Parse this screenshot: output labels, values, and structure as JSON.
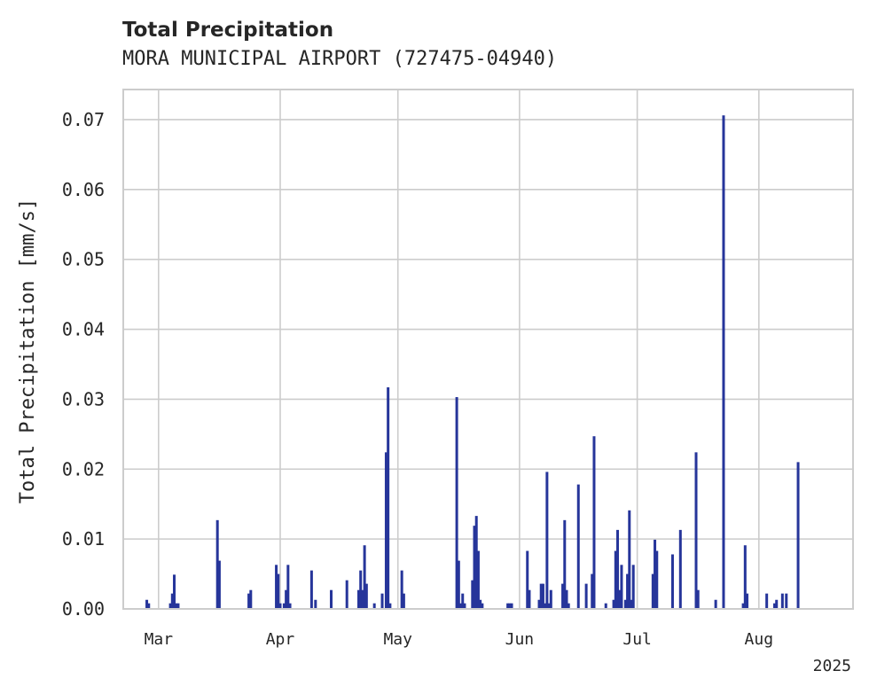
{
  "chart_data": {
    "type": "bar",
    "title": "Total Precipitation",
    "subtitle": "MORA MUNICIPAL AIRPORT (727475-04940)",
    "xlabel": "",
    "ylabel": "Total Precipitation [mm/s]",
    "ylim": [
      0,
      0.0743
    ],
    "yticks": [
      "0.00",
      "0.01",
      "0.02",
      "0.03",
      "0.04",
      "0.05",
      "0.06",
      "0.07"
    ],
    "xlim": [
      "2025-02-20",
      "2025-08-25"
    ],
    "xticks": [
      {
        "date": "2025-03-01",
        "label": "Mar"
      },
      {
        "date": "2025-04-01",
        "label": "Apr"
      },
      {
        "date": "2025-05-01",
        "label": "May"
      },
      {
        "date": "2025-06-01",
        "label": "Jun"
      },
      {
        "date": "2025-07-01",
        "label": "Jul"
      },
      {
        "date": "2025-08-01",
        "label": "Aug"
      }
    ],
    "year_label": "2025",
    "grid": true,
    "color": "#26359a",
    "series": [
      {
        "points": [
          [
            "2025-02-26",
            0.0013
          ],
          [
            "2025-02-26T12",
            0.0008
          ],
          [
            "2025-03-04",
            0.0008
          ],
          [
            "2025-03-04T12",
            0.0022
          ],
          [
            "2025-03-05",
            0.0049
          ],
          [
            "2025-03-05T12",
            0.0008
          ],
          [
            "2025-03-06",
            0.0008
          ],
          [
            "2025-03-16",
            0.0127
          ],
          [
            "2025-03-16T12",
            0.0069
          ],
          [
            "2025-03-24",
            0.0022
          ],
          [
            "2025-03-24T12",
            0.0027
          ],
          [
            "2025-03-31",
            0.0063
          ],
          [
            "2025-03-31T12",
            0.005
          ],
          [
            "2025-04-01",
            0.0008
          ],
          [
            "2025-04-02",
            0.0008
          ],
          [
            "2025-04-02T12",
            0.0027
          ],
          [
            "2025-04-03",
            0.0063
          ],
          [
            "2025-04-03T12",
            0.0008
          ],
          [
            "2025-04-09",
            0.0055
          ],
          [
            "2025-04-10",
            0.0013
          ],
          [
            "2025-04-14",
            0.0027
          ],
          [
            "2025-04-18",
            0.0041
          ],
          [
            "2025-04-21",
            0.0027
          ],
          [
            "2025-04-21T12",
            0.0055
          ],
          [
            "2025-04-22",
            0.0027
          ],
          [
            "2025-04-22T12",
            0.0091
          ],
          [
            "2025-04-23",
            0.0036
          ],
          [
            "2025-04-25",
            0.0008
          ],
          [
            "2025-04-27",
            0.0022
          ],
          [
            "2025-04-28",
            0.0224
          ],
          [
            "2025-04-28T12",
            0.0317
          ],
          [
            "2025-04-29",
            0.0008
          ],
          [
            "2025-05-02",
            0.0055
          ],
          [
            "2025-05-02T12",
            0.0022
          ],
          [
            "2025-05-16",
            0.0303
          ],
          [
            "2025-05-16T12",
            0.0069
          ],
          [
            "2025-05-17",
            0.0008
          ],
          [
            "2025-05-17T12",
            0.0022
          ],
          [
            "2025-05-18",
            0.0008
          ],
          [
            "2025-05-20",
            0.0041
          ],
          [
            "2025-05-20T12",
            0.0119
          ],
          [
            "2025-05-21",
            0.0133
          ],
          [
            "2025-05-21T12",
            0.0083
          ],
          [
            "2025-05-22",
            0.0013
          ],
          [
            "2025-05-22T12",
            0.0008
          ],
          [
            "2025-05-29",
            0.0008
          ],
          [
            "2025-05-29T12",
            0.0008
          ],
          [
            "2025-05-30",
            0.0008
          ],
          [
            "2025-06-03",
            0.0083
          ],
          [
            "2025-06-03T12",
            0.0027
          ],
          [
            "2025-06-06",
            0.0013
          ],
          [
            "2025-06-06T12",
            0.0036
          ],
          [
            "2025-06-07",
            0.0036
          ],
          [
            "2025-06-07T12",
            0.0008
          ],
          [
            "2025-06-08",
            0.0196
          ],
          [
            "2025-06-08T12",
            0.0008
          ],
          [
            "2025-06-09",
            0.0027
          ],
          [
            "2025-06-12",
            0.0036
          ],
          [
            "2025-06-12T12",
            0.0127
          ],
          [
            "2025-06-13",
            0.0027
          ],
          [
            "2025-06-13T12",
            0.0008
          ],
          [
            "2025-06-16",
            0.0178
          ],
          [
            "2025-06-18",
            0.0036
          ],
          [
            "2025-06-19T12",
            0.005
          ],
          [
            "2025-06-20",
            0.0247
          ],
          [
            "2025-06-23",
            0.0008
          ],
          [
            "2025-06-25",
            0.0013
          ],
          [
            "2025-06-25T12",
            0.0083
          ],
          [
            "2025-06-26",
            0.0113
          ],
          [
            "2025-06-26T12",
            0.0027
          ],
          [
            "2025-06-27",
            0.0063
          ],
          [
            "2025-06-28",
            0.0013
          ],
          [
            "2025-06-28T12",
            0.005
          ],
          [
            "2025-06-29",
            0.0141
          ],
          [
            "2025-06-29T12",
            0.0013
          ],
          [
            "2025-06-30",
            0.0063
          ],
          [
            "2025-07-05",
            0.005
          ],
          [
            "2025-07-05T12",
            0.0099
          ],
          [
            "2025-07-06",
            0.0083
          ],
          [
            "2025-07-10",
            0.0078
          ],
          [
            "2025-07-12",
            0.0113
          ],
          [
            "2025-07-16",
            0.0224
          ],
          [
            "2025-07-16T12",
            0.0027
          ],
          [
            "2025-07-21",
            0.0013
          ],
          [
            "2025-07-23",
            0.0706
          ],
          [
            "2025-07-28",
            0.0008
          ],
          [
            "2025-07-28T12",
            0.0091
          ],
          [
            "2025-07-29",
            0.0022
          ],
          [
            "2025-08-03",
            0.0022
          ],
          [
            "2025-08-05",
            0.0008
          ],
          [
            "2025-08-05T12",
            0.0013
          ],
          [
            "2025-08-07",
            0.0022
          ],
          [
            "2025-08-08",
            0.0022
          ],
          [
            "2025-08-11",
            0.021
          ]
        ]
      }
    ]
  }
}
